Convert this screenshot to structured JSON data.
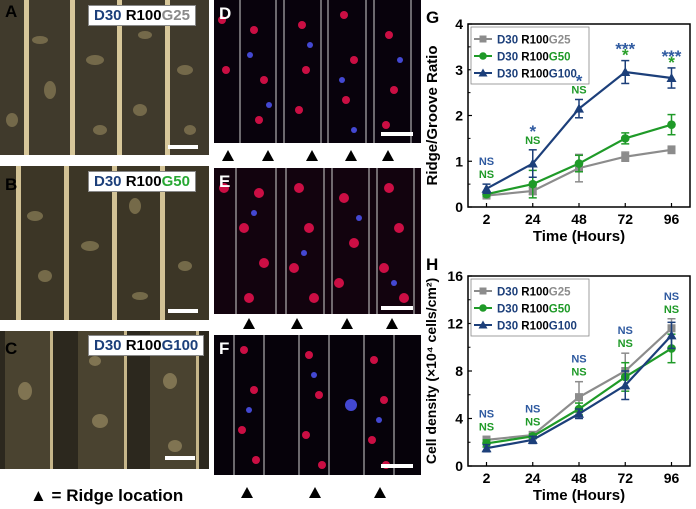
{
  "panels": {
    "A": {
      "letter": "A",
      "label_d": "D30",
      "label_r": "R100",
      "label_g": "G25"
    },
    "B": {
      "letter": "B",
      "label_d": "D30",
      "label_r": "R100",
      "label_g": "G50"
    },
    "C": {
      "letter": "C",
      "label_d": "D30",
      "label_r": "R100",
      "label_g": "G100"
    },
    "D": {
      "letter": "D"
    },
    "E": {
      "letter": "E"
    },
    "F": {
      "letter": "F"
    }
  },
  "ridge_key": "▲ = Ridge location",
  "colors": {
    "g25": "#8c8c8c",
    "g50": "#1f9a28",
    "g100": "#1c3f7a",
    "ns_blue": "#2f5aa0",
    "star_blue": "#2f5aa0",
    "star_green": "#2aa02a"
  },
  "chart_data": [
    {
      "panel": "G",
      "type": "line",
      "title": "",
      "xlabel": "Time (Hours)",
      "ylabel": "Ridge/Groove Ratio",
      "categories": [
        "2",
        "24",
        "48",
        "72",
        "96"
      ],
      "ylim": [
        0,
        4
      ],
      "yticks": [
        "0",
        "1",
        "2",
        "3",
        "4"
      ],
      "legend_position": "top-left",
      "series": [
        {
          "name": "D30 R100G25",
          "legend_prefix": "D30",
          "legend_main": " R100",
          "legend_g": "G25",
          "key": "g25",
          "values": [
            0.25,
            0.35,
            0.85,
            1.1,
            1.25
          ],
          "errors": [
            0.05,
            0.08,
            0.3,
            0.1,
            0.08
          ]
        },
        {
          "name": "D30 R100G50",
          "legend_prefix": "D30",
          "legend_main": " R100",
          "legend_g": "G50",
          "key": "g50",
          "values": [
            0.28,
            0.5,
            0.95,
            1.5,
            1.8
          ],
          "errors": [
            0.05,
            0.3,
            0.18,
            0.12,
            0.22
          ]
        },
        {
          "name": "D30 R100G100",
          "legend_prefix": "D30",
          "legend_main": " R100",
          "legend_g": "G100",
          "key": "g100",
          "values": [
            0.4,
            0.95,
            2.15,
            2.95,
            2.82
          ],
          "errors": [
            0.1,
            0.3,
            0.2,
            0.25,
            0.22
          ]
        }
      ],
      "annotations": [
        {
          "x": "2",
          "top": "NS",
          "bottom": "NS",
          "kind": "ns"
        },
        {
          "x": "24",
          "top": "*",
          "bottom": "NS",
          "kind": "mixed"
        },
        {
          "x": "48",
          "top": "*",
          "bottom": "NS",
          "kind": "mixed"
        },
        {
          "x": "72",
          "top": "***",
          "bottom": "*",
          "kind": "stars"
        },
        {
          "x": "96",
          "top": "***",
          "bottom": "*",
          "kind": "stars"
        }
      ]
    },
    {
      "panel": "H",
      "type": "line",
      "title": "",
      "xlabel": "Time (Hours)",
      "ylabel": "Cell density (×10⁴ cells/cm²)",
      "categories": [
        "2",
        "24",
        "48",
        "72",
        "96"
      ],
      "ylim": [
        0,
        16
      ],
      "yticks": [
        "0",
        "4",
        "8",
        "12",
        "16"
      ],
      "legend_position": "top-left",
      "series": [
        {
          "name": "D30 R100G25",
          "legend_prefix": "D30",
          "legend_main": " R100",
          "legend_g": "G25",
          "key": "g25",
          "values": [
            2.2,
            2.6,
            5.8,
            8.0,
            11.6
          ],
          "errors": [
            0.3,
            0.3,
            1.3,
            1.5,
            0.8
          ]
        },
        {
          "name": "D30 R100G50",
          "legend_prefix": "D30",
          "legend_main": " R100",
          "legend_g": "G50",
          "key": "g50",
          "values": [
            1.9,
            2.5,
            4.8,
            7.5,
            9.9
          ],
          "errors": [
            0.3,
            0.2,
            0.5,
            1.2,
            1.2
          ]
        },
        {
          "name": "D30 R100G100",
          "legend_prefix": "D30",
          "legend_main": " R100",
          "legend_g": "G100",
          "key": "g100",
          "values": [
            1.5,
            2.2,
            4.4,
            6.8,
            11.0
          ],
          "errors": [
            0.3,
            0.3,
            0.4,
            1.2,
            1.1
          ]
        }
      ],
      "annotations": [
        {
          "x": "2",
          "top": "NS",
          "bottom": "NS",
          "kind": "ns"
        },
        {
          "x": "24",
          "top": "NS",
          "bottom": "NS",
          "kind": "ns"
        },
        {
          "x": "48",
          "top": "NS",
          "bottom": "NS",
          "kind": "ns"
        },
        {
          "x": "72",
          "top": "NS",
          "bottom": "NS",
          "kind": "ns"
        },
        {
          "x": "96",
          "top": "NS",
          "bottom": "NS",
          "kind": "ns"
        }
      ]
    }
  ]
}
